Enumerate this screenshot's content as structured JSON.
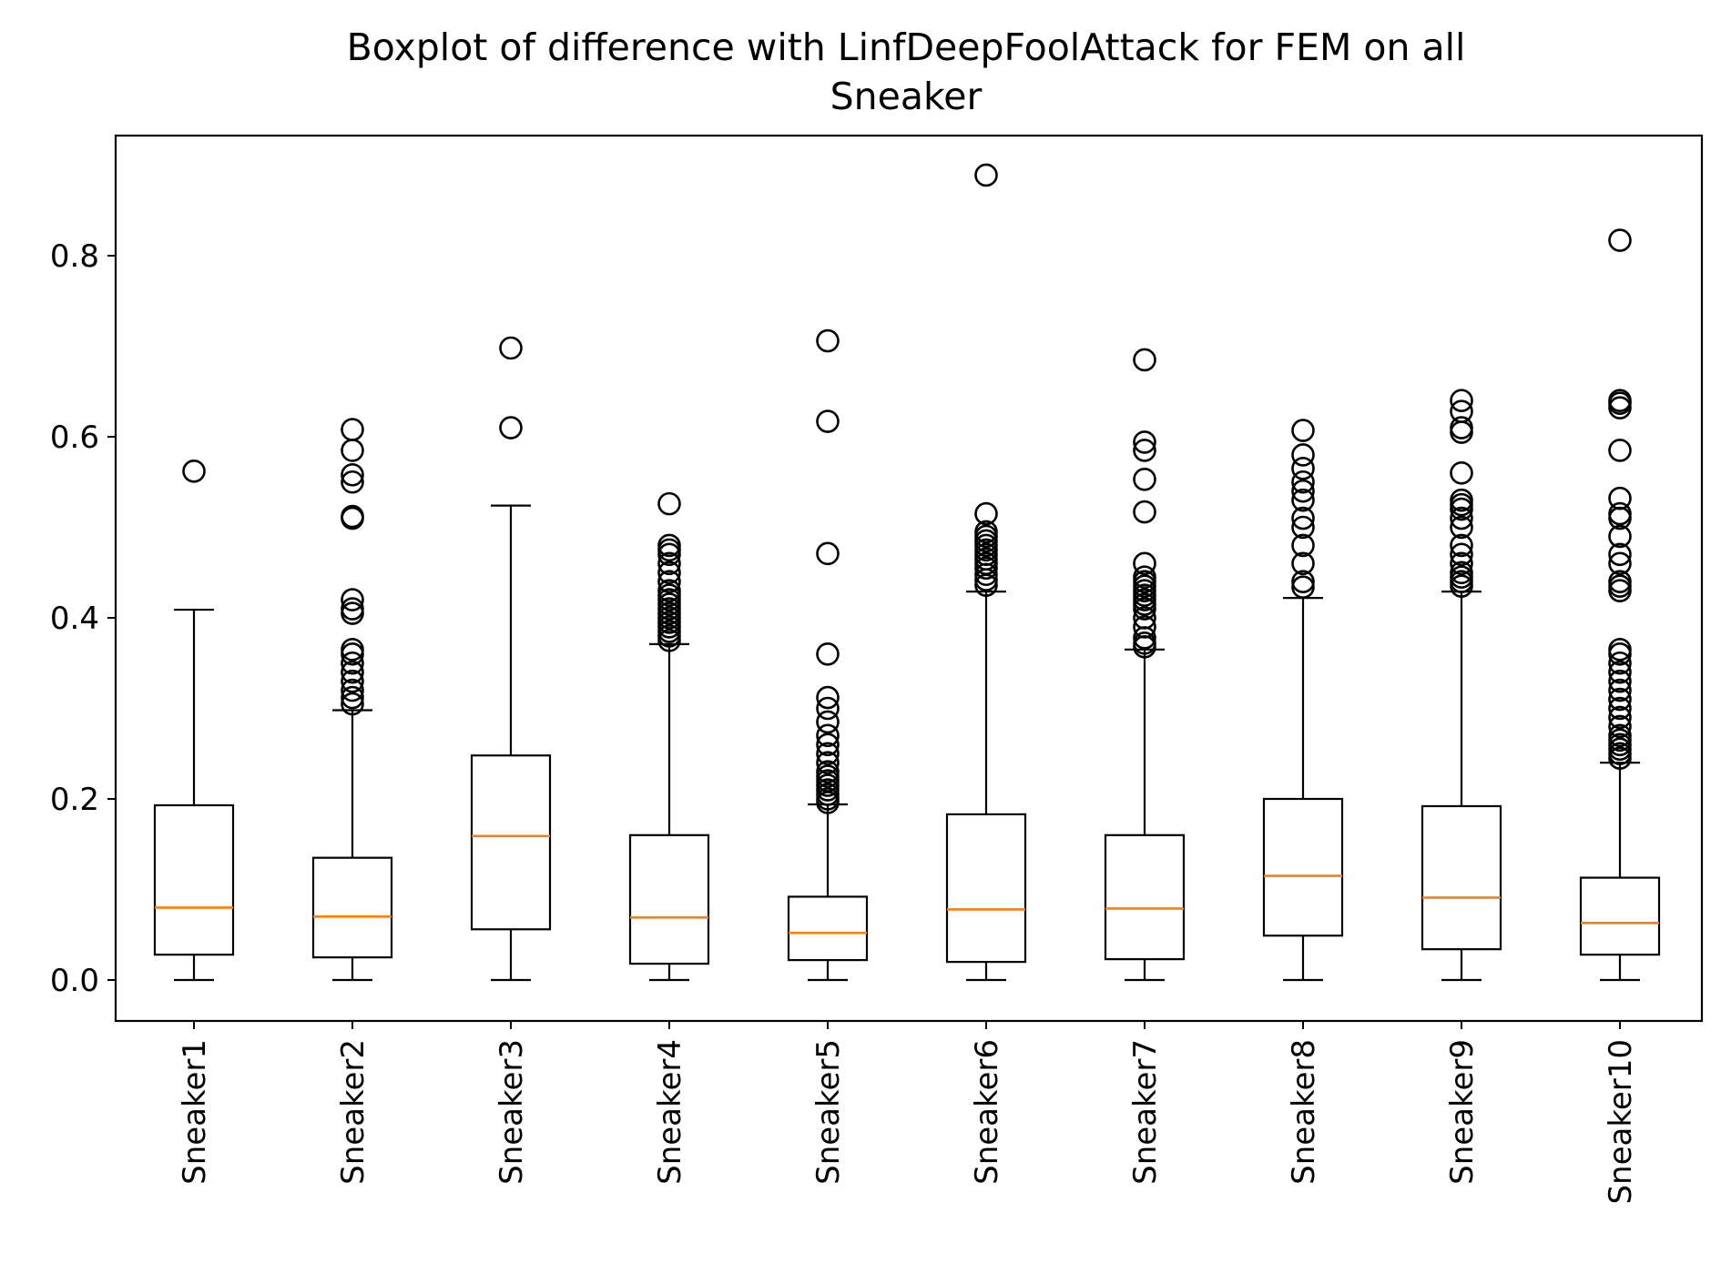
{
  "chart_data": {
    "type": "boxplot",
    "title": "Boxplot of difference with LinfDeepFoolAttack for FEM on all\nSneaker",
    "title_lines": [
      "Boxplot of difference with LinfDeepFoolAttack for FEM on all",
      "Sneaker"
    ],
    "xlabel": "",
    "ylabel": "",
    "ylim": [
      -0.044,
      0.935
    ],
    "yticks": [
      0.0,
      0.2,
      0.4,
      0.6,
      0.8
    ],
    "ytick_labels": [
      "0.0",
      "0.2",
      "0.4",
      "0.6",
      "0.8"
    ],
    "grid": false,
    "colors": {
      "box": "#000000",
      "median": "#ff7f0e",
      "background": "#ffffff"
    },
    "categories": [
      "Sneaker1",
      "Sneaker2",
      "Sneaker3",
      "Sneaker4",
      "Sneaker5",
      "Sneaker6",
      "Sneaker7",
      "Sneaker8",
      "Sneaker9",
      "Sneaker10"
    ],
    "boxes": [
      {
        "label": "Sneaker1",
        "whislo": 0.0,
        "q1": 0.028,
        "med": 0.08,
        "q3": 0.193,
        "whishi": 0.409,
        "fliers": [
          0.562
        ]
      },
      {
        "label": "Sneaker2",
        "whislo": 0.0,
        "q1": 0.025,
        "med": 0.07,
        "q3": 0.135,
        "whishi": 0.298,
        "fliers": [
          0.305,
          0.312,
          0.32,
          0.33,
          0.34,
          0.35,
          0.36,
          0.365,
          0.405,
          0.41,
          0.42,
          0.51,
          0.512,
          0.55,
          0.558,
          0.585,
          0.608
        ]
      },
      {
        "label": "Sneaker3",
        "whislo": 0.0,
        "q1": 0.056,
        "med": 0.159,
        "q3": 0.248,
        "whishi": 0.524,
        "fliers": [
          0.61,
          0.698
        ]
      },
      {
        "label": "Sneaker4",
        "whislo": 0.0,
        "q1": 0.018,
        "med": 0.069,
        "q3": 0.16,
        "whishi": 0.371,
        "fliers": [
          0.375,
          0.38,
          0.385,
          0.39,
          0.395,
          0.4,
          0.405,
          0.41,
          0.415,
          0.42,
          0.425,
          0.43,
          0.44,
          0.45,
          0.46,
          0.47,
          0.475,
          0.48,
          0.526
        ]
      },
      {
        "label": "Sneaker5",
        "whislo": 0.0,
        "q1": 0.022,
        "med": 0.052,
        "q3": 0.092,
        "whishi": 0.194,
        "fliers": [
          0.196,
          0.2,
          0.205,
          0.21,
          0.215,
          0.22,
          0.225,
          0.23,
          0.24,
          0.25,
          0.26,
          0.27,
          0.285,
          0.3,
          0.312,
          0.36,
          0.471,
          0.617,
          0.706
        ]
      },
      {
        "label": "Sneaker6",
        "whislo": 0.0,
        "q1": 0.02,
        "med": 0.078,
        "q3": 0.183,
        "whishi": 0.429,
        "fliers": [
          0.436,
          0.442,
          0.448,
          0.455,
          0.46,
          0.465,
          0.47,
          0.475,
          0.48,
          0.485,
          0.49,
          0.495,
          0.515,
          0.889
        ]
      },
      {
        "label": "Sneaker7",
        "whislo": 0.0,
        "q1": 0.023,
        "med": 0.079,
        "q3": 0.16,
        "whishi": 0.365,
        "fliers": [
          0.368,
          0.372,
          0.378,
          0.39,
          0.4,
          0.41,
          0.415,
          0.42,
          0.425,
          0.43,
          0.435,
          0.44,
          0.445,
          0.46,
          0.517,
          0.553,
          0.585,
          0.594,
          0.685
        ]
      },
      {
        "label": "Sneaker8",
        "whislo": 0.0,
        "q1": 0.049,
        "med": 0.115,
        "q3": 0.2,
        "whishi": 0.422,
        "fliers": [
          0.434,
          0.44,
          0.46,
          0.48,
          0.5,
          0.51,
          0.53,
          0.54,
          0.55,
          0.565,
          0.58,
          0.607
        ]
      },
      {
        "label": "Sneaker9",
        "whislo": 0.0,
        "q1": 0.034,
        "med": 0.091,
        "q3": 0.192,
        "whishi": 0.429,
        "fliers": [
          0.435,
          0.44,
          0.445,
          0.45,
          0.46,
          0.47,
          0.48,
          0.5,
          0.51,
          0.52,
          0.525,
          0.53,
          0.56,
          0.605,
          0.61,
          0.628,
          0.64
        ]
      },
      {
        "label": "Sneaker10",
        "whislo": 0.0,
        "q1": 0.028,
        "med": 0.063,
        "q3": 0.113,
        "whishi": 0.24,
        "fliers": [
          0.245,
          0.25,
          0.255,
          0.26,
          0.265,
          0.27,
          0.28,
          0.29,
          0.3,
          0.31,
          0.32,
          0.33,
          0.34,
          0.35,
          0.36,
          0.365,
          0.43,
          0.435,
          0.44,
          0.46,
          0.47,
          0.49,
          0.51,
          0.515,
          0.532,
          0.585,
          0.632,
          0.637,
          0.64,
          0.817
        ]
      }
    ]
  }
}
